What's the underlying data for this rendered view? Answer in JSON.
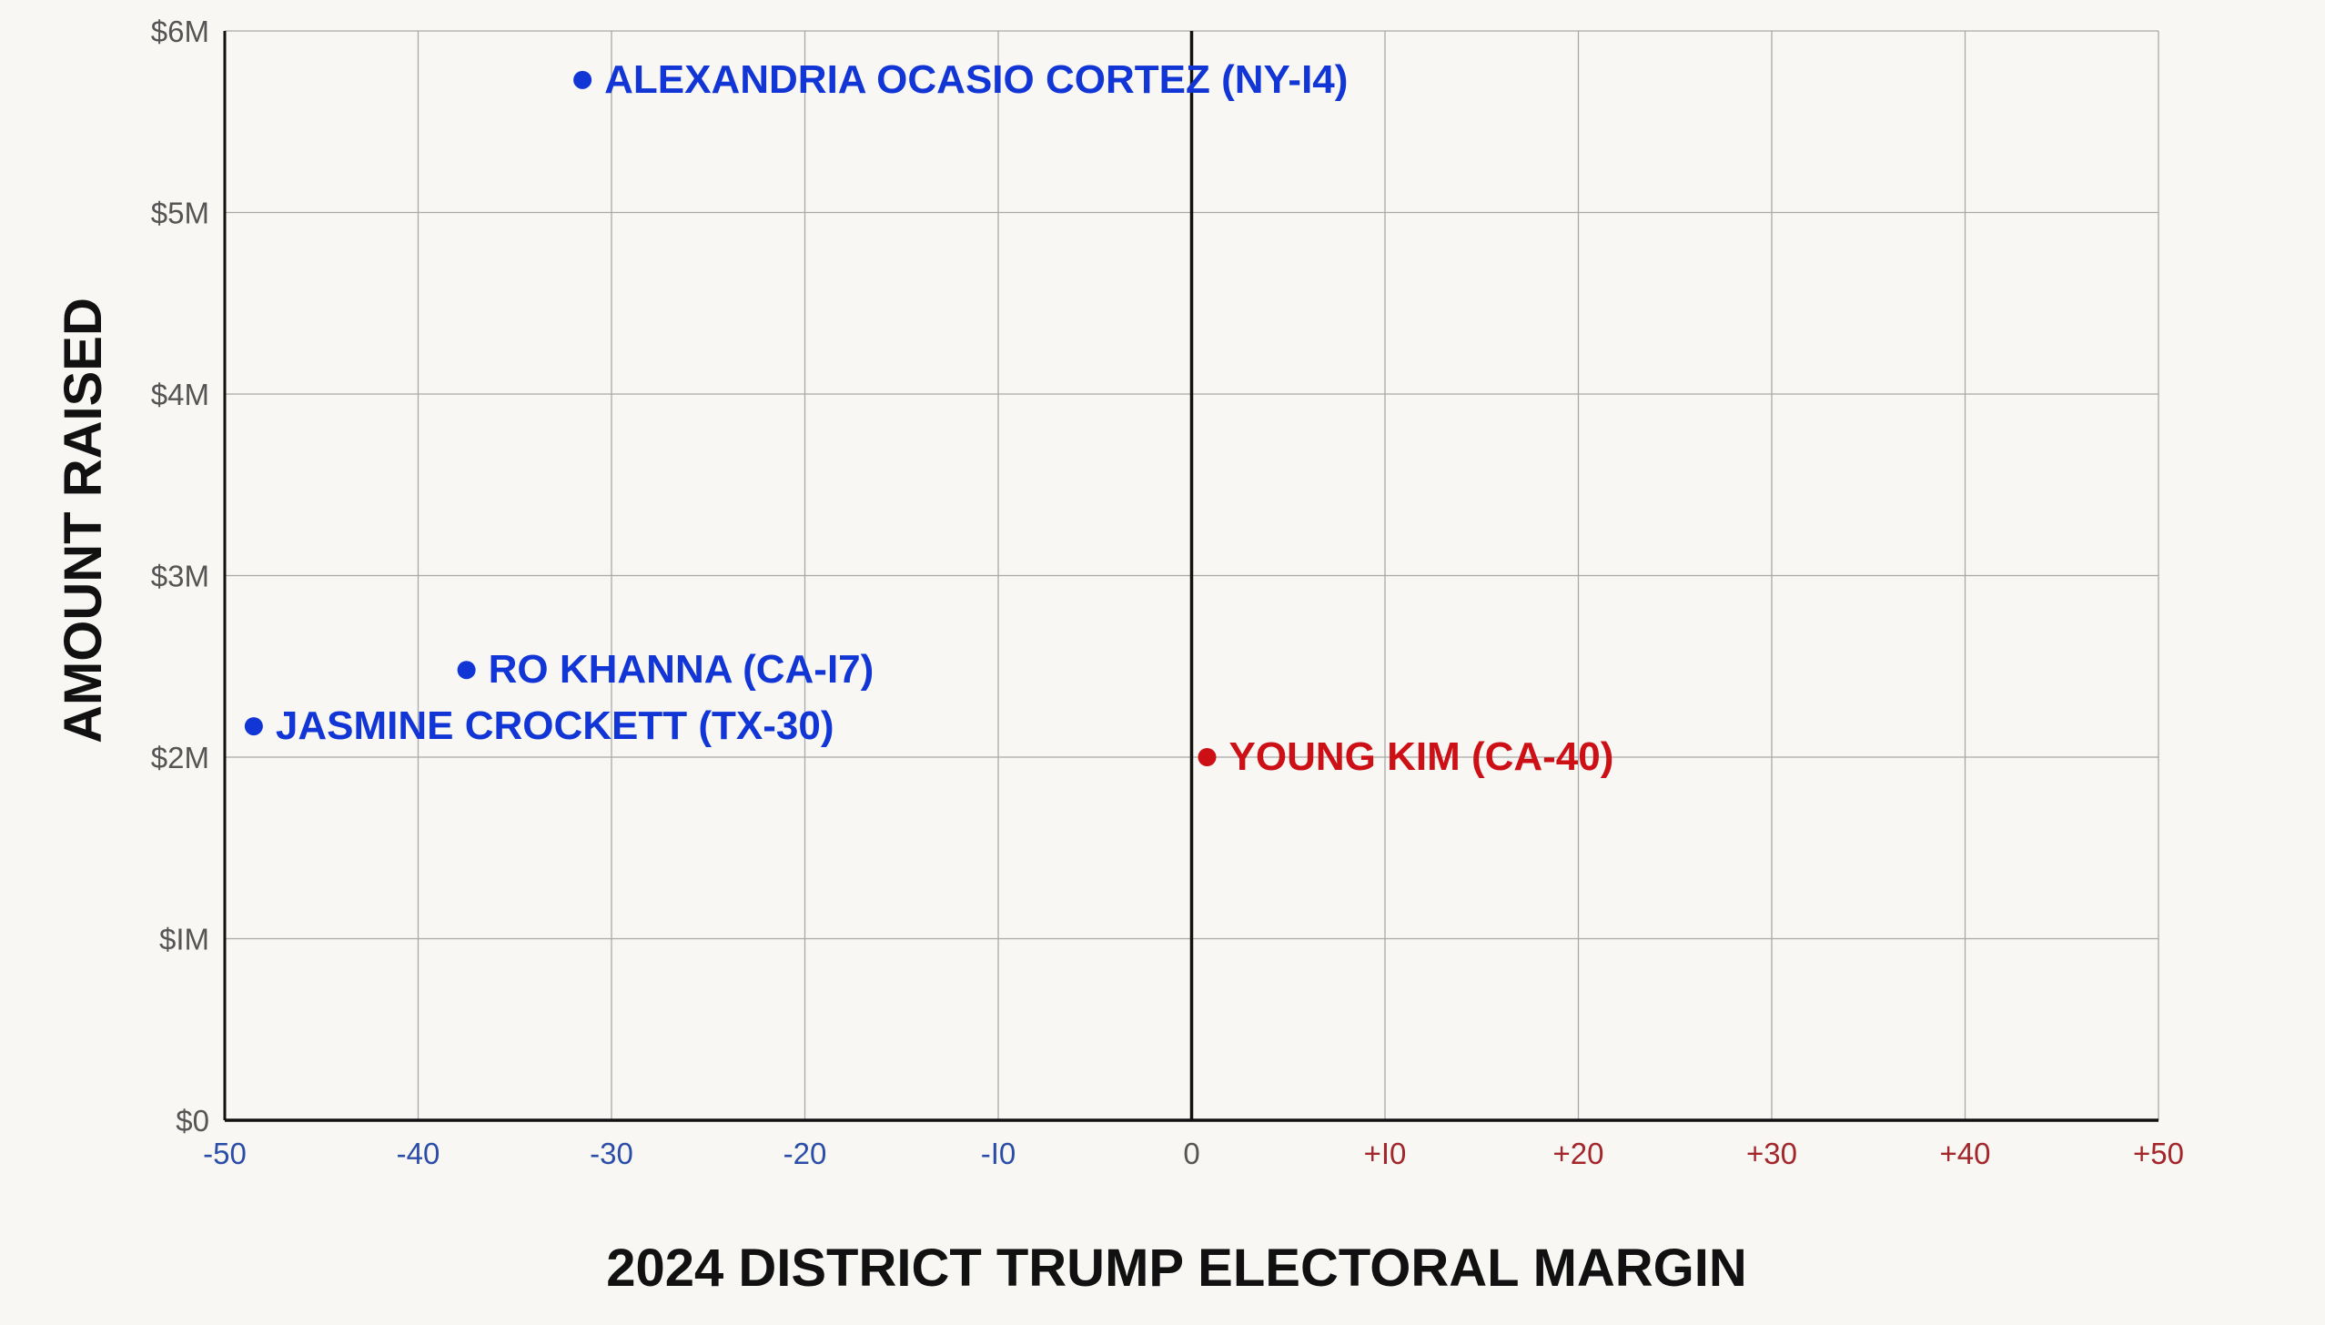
{
  "chart_data": {
    "type": "scatter",
    "xlabel": "2024 DISTRICT TRUMP ELECTORAL MARGIN",
    "ylabel": "AMOUNT RAISED",
    "xlim": [
      -50,
      50
    ],
    "ylim": [
      0,
      6000000
    ],
    "grid": true,
    "x_ticks": [
      {
        "value": -50,
        "label": "-50"
      },
      {
        "value": -40,
        "label": "-40"
      },
      {
        "value": -30,
        "label": "-30"
      },
      {
        "value": -20,
        "label": "-20"
      },
      {
        "value": -10,
        "label": "-I0"
      },
      {
        "value": 0,
        "label": "0"
      },
      {
        "value": 10,
        "label": "+I0"
      },
      {
        "value": 20,
        "label": "+20"
      },
      {
        "value": 30,
        "label": "+30"
      },
      {
        "value": 40,
        "label": "+40"
      },
      {
        "value": 50,
        "label": "+50"
      }
    ],
    "y_ticks": [
      {
        "value": 0,
        "label": "$0"
      },
      {
        "value": 1000000,
        "label": "$IM"
      },
      {
        "value": 2000000,
        "label": "$2M"
      },
      {
        "value": 3000000,
        "label": "$3M"
      },
      {
        "value": 4000000,
        "label": "$4M"
      },
      {
        "value": 5000000,
        "label": "$5M"
      },
      {
        "value": 6000000,
        "label": "$6M"
      }
    ],
    "points": [
      {
        "label": "ALEXANDRIA OCASIO CORTEZ (NY-I4)",
        "x": -31.5,
        "y": 5730000,
        "party": "D"
      },
      {
        "label": "RO KHANNA (CA-I7)",
        "x": -37.5,
        "y": 2480000,
        "party": "D"
      },
      {
        "label": "JASMINE CROCKETT (TX-30)",
        "x": -48.5,
        "y": 2170000,
        "party": "D"
      },
      {
        "label": "YOUNG KIM (CA-40)",
        "x": 0.8,
        "y": 2000000,
        "party": "R"
      }
    ],
    "colors": {
      "D": "#1235d6",
      "R": "#cc1016",
      "tick_negative": "#2a4ea8",
      "tick_positive": "#a3262b",
      "tick_neutral": "#555555",
      "grid": "#a9a9a9",
      "axis": "#111111"
    }
  }
}
